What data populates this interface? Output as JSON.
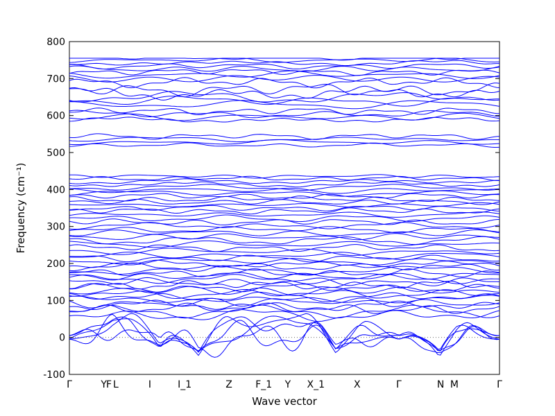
{
  "chart_data": {
    "type": "line",
    "xlabel": "Wave vector",
    "ylabel": "Frequency (cm⁻¹)",
    "ylim": [
      -100,
      800
    ],
    "yticks": [
      -100,
      0,
      100,
      200,
      300,
      400,
      500,
      600,
      700,
      800
    ],
    "xlim": [
      0,
      100
    ],
    "kpoints": [
      {
        "label": "Γ",
        "x": 0
      },
      {
        "label": "Y",
        "x": 8.0
      },
      {
        "label": "F",
        "x": 9.2
      },
      {
        "label": "L",
        "x": 10.8
      },
      {
        "label": "I",
        "x": 18.7
      },
      {
        "label": "I_1",
        "x": 26.8
      },
      {
        "label": "Z",
        "x": 37.1
      },
      {
        "label": "F_1",
        "x": 45.2
      },
      {
        "label": "Y",
        "x": 50.8
      },
      {
        "label": "X_1",
        "x": 57.3
      },
      {
        "label": "X",
        "x": 66.9
      },
      {
        "label": "Γ",
        "x": 76.6
      },
      {
        "label": "N",
        "x": 86.3
      },
      {
        "label": "M",
        "x": 89.5
      },
      {
        "label": "Γ",
        "x": 100
      }
    ],
    "zero_line": 0,
    "series_color": "#0000ff",
    "band_count": 72,
    "bands": {
      "levels": [
        5,
        15,
        25,
        35,
        45,
        60,
        70,
        78,
        86,
        94,
        102,
        110,
        118,
        126,
        134,
        142,
        150,
        158,
        166,
        174,
        182,
        190,
        198,
        206,
        214,
        222,
        232,
        242,
        252,
        262,
        272,
        282,
        292,
        302,
        312,
        322,
        332,
        342,
        350,
        358,
        366,
        374,
        382,
        390,
        398,
        406,
        414,
        422,
        430,
        436,
        520,
        528,
        536,
        544,
        588,
        596,
        604,
        612,
        630,
        640,
        650,
        660,
        670,
        690,
        700,
        710,
        718,
        726,
        734,
        742,
        750,
        756
      ],
      "amplitudes": [
        60,
        48,
        40,
        34,
        28,
        18,
        16,
        15,
        14,
        14,
        13,
        13,
        13,
        12,
        12,
        12,
        12,
        12,
        11,
        11,
        11,
        11,
        10,
        10,
        10,
        10,
        10,
        10,
        10,
        10,
        9,
        9,
        9,
        9,
        9,
        9,
        8,
        8,
        8,
        8,
        8,
        8,
        8,
        8,
        8,
        8,
        7,
        7,
        6,
        5,
        6,
        7,
        7,
        8,
        8,
        10,
        10,
        10,
        12,
        14,
        16,
        18,
        18,
        14,
        12,
        10,
        9,
        9,
        8,
        8,
        7,
        6
      ]
    }
  }
}
